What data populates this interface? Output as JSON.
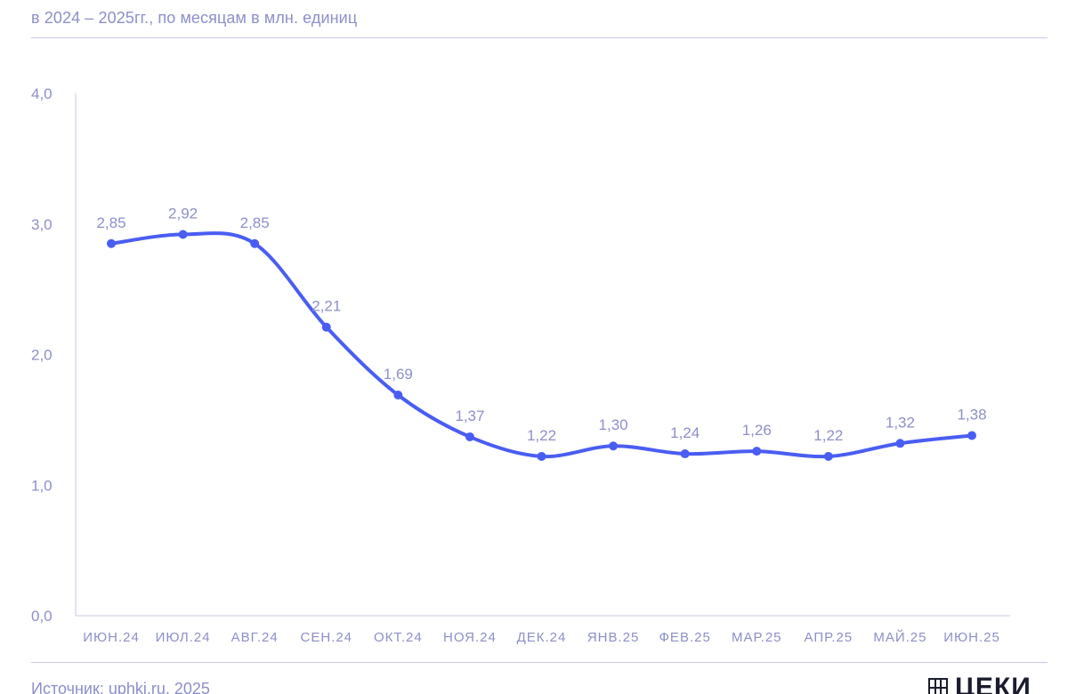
{
  "header": {
    "subtitle": "в 2024 – 2025гг., по месяцам в млн. единиц"
  },
  "footer": {
    "source": "Источник: uphki.ru, 2025",
    "brand": "ЦЕКИ"
  },
  "colors": {
    "line": "#4a5df2",
    "axis_text": "#8d8fc9",
    "axis_line": "#c9cae6",
    "brand_text": "#1b1c2e"
  },
  "chart_data": {
    "type": "line",
    "categories": [
      "ИЮН.24",
      "ИЮЛ.24",
      "АВГ.24",
      "СЕН.24",
      "ОКТ.24",
      "НОЯ.24",
      "ДЕК.24",
      "ЯНВ.25",
      "ФЕВ.25",
      "МАР.25",
      "АПР.25",
      "МАЙ.25",
      "ИЮН.25"
    ],
    "series": [
      {
        "values": [
          2.85,
          2.92,
          2.85,
          2.21,
          1.69,
          1.37,
          1.22,
          1.3,
          1.24,
          1.26,
          1.22,
          1.32,
          1.38
        ],
        "data_labels": [
          "2,85",
          "2,92",
          "2,85",
          "2,21",
          "1,69",
          "1,37",
          "1,22",
          "1,30",
          "1,24",
          "1,26",
          "1,22",
          "1,32",
          "1,38"
        ]
      }
    ],
    "ylim": [
      0,
      4
    ],
    "y_ticks": [
      0,
      1,
      2,
      3,
      4
    ],
    "y_tick_labels": [
      "0,0",
      "1,0",
      "2,0",
      "3,0",
      "4,0"
    ],
    "grid": false,
    "legend": "none",
    "xlabel": "",
    "ylabel": ""
  }
}
